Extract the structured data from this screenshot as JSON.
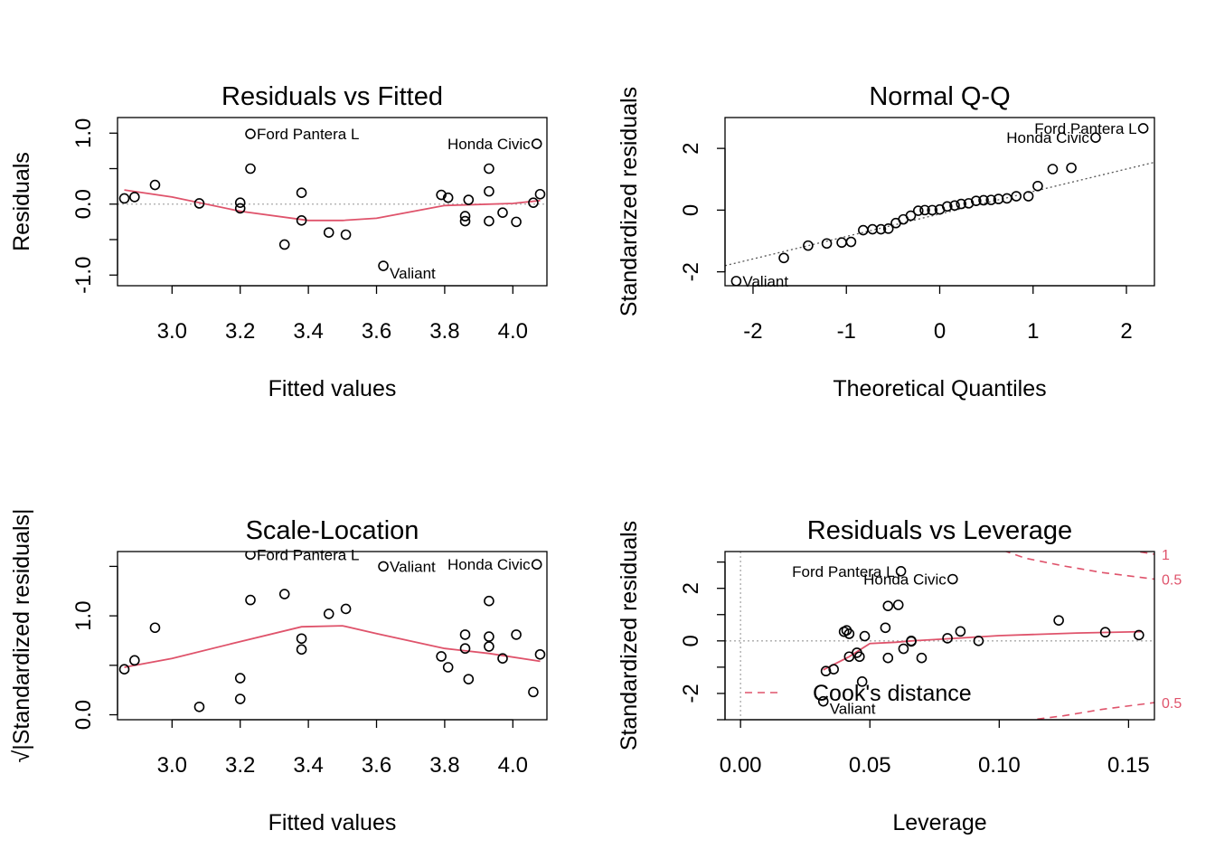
{
  "colors": {
    "smoother": "#DF536B",
    "cooks": "#DF536B",
    "refline": "#A9A9A9",
    "points": "#000000",
    "background": "#FFFFFF"
  },
  "chart_data": [
    {
      "type": "scatter",
      "title": "Residuals vs Fitted",
      "xlabel": "Fitted values",
      "ylabel": "Residuals",
      "xlim": [
        2.84,
        4.1
      ],
      "ylim": [
        -1.15,
        1.22
      ],
      "xticks": [
        3.0,
        3.2,
        3.4,
        3.6,
        3.8,
        4.0
      ],
      "xtick_labels": [
        "3.0",
        "3.2",
        "3.4",
        "3.6",
        "3.8",
        "4.0"
      ],
      "yticks": [
        -1.0,
        -0.5,
        0.0,
        0.5,
        1.0
      ],
      "ytick_labels": [
        "-1.0",
        "",
        "0.0",
        "",
        "1.0"
      ],
      "refline": {
        "kind": "h",
        "value": 0
      },
      "points": [
        [
          2.86,
          0.08
        ],
        [
          2.89,
          0.1
        ],
        [
          2.95,
          0.27
        ],
        [
          3.08,
          0.01
        ],
        [
          3.2,
          0.02
        ],
        [
          3.2,
          -0.06
        ],
        [
          3.23,
          0.99
        ],
        [
          3.23,
          0.5
        ],
        [
          3.33,
          -0.57
        ],
        [
          3.38,
          0.16
        ],
        [
          3.38,
          -0.23
        ],
        [
          3.46,
          -0.4
        ],
        [
          3.51,
          -0.43
        ],
        [
          3.62,
          -0.87
        ],
        [
          3.79,
          0.13
        ],
        [
          3.81,
          0.09
        ],
        [
          3.86,
          -0.17
        ],
        [
          3.86,
          -0.24
        ],
        [
          3.87,
          0.06
        ],
        [
          3.93,
          0.5
        ],
        [
          3.93,
          0.18
        ],
        [
          3.93,
          -0.24
        ],
        [
          3.97,
          -0.12
        ],
        [
          4.01,
          -0.25
        ],
        [
          4.06,
          0.02
        ],
        [
          4.07,
          0.85
        ],
        [
          4.08,
          0.14
        ]
      ],
      "smoother": [
        [
          2.86,
          0.2
        ],
        [
          3.0,
          0.1
        ],
        [
          3.2,
          -0.1
        ],
        [
          3.4,
          -0.23
        ],
        [
          3.5,
          -0.23
        ],
        [
          3.6,
          -0.2
        ],
        [
          3.8,
          -0.02
        ],
        [
          4.0,
          0.01
        ],
        [
          4.08,
          0.05
        ]
      ],
      "annotations": [
        {
          "text": "Ford Pantera L",
          "x": 3.23,
          "y": 0.99,
          "side": "right"
        },
        {
          "text": "Honda Civic",
          "x": 4.07,
          "y": 0.85,
          "side": "left"
        },
        {
          "text": "Valiant",
          "x": 3.62,
          "y": -0.87,
          "side": "right-below"
        }
      ]
    },
    {
      "type": "scatter",
      "title": "Normal Q-Q",
      "xlabel": "Theoretical Quantiles",
      "ylabel": "Standardized residuals",
      "xlim": [
        -2.3,
        2.3
      ],
      "ylim": [
        -2.45,
        3.0
      ],
      "xticks": [
        -2,
        -1,
        0,
        1,
        2
      ],
      "xtick_labels": [
        "-2",
        "-1",
        "0",
        "1",
        "2"
      ],
      "yticks": [
        -2,
        0,
        2
      ],
      "ytick_labels": [
        "-2",
        "0",
        "2"
      ],
      "refline": {
        "kind": "ab",
        "points": [
          [
            -2.3,
            -1.8
          ],
          [
            2.3,
            1.55
          ]
        ]
      },
      "points": [
        [
          -2.18,
          -2.3
        ],
        [
          -1.67,
          -1.55
        ],
        [
          -1.41,
          -1.15
        ],
        [
          -1.21,
          -1.08
        ],
        [
          -1.05,
          -1.05
        ],
        [
          -0.95,
          -1.03
        ],
        [
          -0.82,
          -0.65
        ],
        [
          -0.72,
          -0.62
        ],
        [
          -0.63,
          -0.62
        ],
        [
          -0.55,
          -0.6
        ],
        [
          -0.47,
          -0.42
        ],
        [
          -0.39,
          -0.3
        ],
        [
          -0.31,
          -0.18
        ],
        [
          -0.23,
          -0.02
        ],
        [
          -0.16,
          0.0
        ],
        [
          -0.08,
          0.0
        ],
        [
          0.0,
          0.02
        ],
        [
          0.08,
          0.12
        ],
        [
          0.16,
          0.15
        ],
        [
          0.23,
          0.2
        ],
        [
          0.31,
          0.22
        ],
        [
          0.39,
          0.3
        ],
        [
          0.47,
          0.32
        ],
        [
          0.55,
          0.33
        ],
        [
          0.63,
          0.36
        ],
        [
          0.72,
          0.38
        ],
        [
          0.82,
          0.45
        ],
        [
          0.95,
          0.45
        ],
        [
          1.05,
          0.78
        ],
        [
          1.21,
          1.33
        ],
        [
          1.41,
          1.37
        ],
        [
          1.67,
          2.35
        ],
        [
          2.18,
          2.65
        ]
      ],
      "annotations": [
        {
          "text": "Ford Pantera L",
          "x": 2.18,
          "y": 2.65,
          "side": "left"
        },
        {
          "text": "Honda Civic",
          "x": 1.67,
          "y": 2.35,
          "side": "left"
        },
        {
          "text": "Valiant",
          "x": -2.18,
          "y": -2.3,
          "side": "right"
        }
      ]
    },
    {
      "type": "scatter",
      "title": "Scale-Location",
      "xlabel": "Fitted values",
      "ylabel": "√|Standardized residuals|",
      "xlim": [
        2.84,
        4.1
      ],
      "ylim": [
        -0.05,
        1.65
      ],
      "xticks": [
        3.0,
        3.2,
        3.4,
        3.6,
        3.8,
        4.0
      ],
      "xtick_labels": [
        "3.0",
        "3.2",
        "3.4",
        "3.6",
        "3.8",
        "4.0"
      ],
      "yticks": [
        0.0,
        0.5,
        1.0,
        1.5
      ],
      "ytick_labels": [
        "0.0",
        "",
        "1.0",
        ""
      ],
      "points": [
        [
          2.86,
          0.46
        ],
        [
          2.89,
          0.55
        ],
        [
          2.95,
          0.88
        ],
        [
          3.08,
          0.08
        ],
        [
          3.2,
          0.37
        ],
        [
          3.2,
          0.16
        ],
        [
          3.23,
          1.62
        ],
        [
          3.23,
          1.16
        ],
        [
          3.33,
          1.22
        ],
        [
          3.38,
          0.77
        ],
        [
          3.38,
          0.66
        ],
        [
          3.46,
          1.02
        ],
        [
          3.51,
          1.07
        ],
        [
          3.62,
          1.5
        ],
        [
          3.79,
          0.59
        ],
        [
          3.81,
          0.48
        ],
        [
          3.86,
          0.81
        ],
        [
          3.86,
          0.67
        ],
        [
          3.87,
          0.36
        ],
        [
          3.93,
          1.15
        ],
        [
          3.93,
          0.79
        ],
        [
          3.93,
          0.69
        ],
        [
          3.97,
          0.57
        ],
        [
          4.01,
          0.81
        ],
        [
          4.06,
          0.23
        ],
        [
          4.07,
          1.52
        ],
        [
          4.08,
          0.61
        ]
      ],
      "smoother": [
        [
          2.86,
          0.48
        ],
        [
          3.0,
          0.57
        ],
        [
          3.2,
          0.74
        ],
        [
          3.38,
          0.89
        ],
        [
          3.5,
          0.9
        ],
        [
          3.6,
          0.82
        ],
        [
          3.8,
          0.67
        ],
        [
          3.93,
          0.62
        ],
        [
          4.08,
          0.54
        ]
      ],
      "annotations": [
        {
          "text": "Ford Pantera L",
          "x": 3.23,
          "y": 1.62,
          "side": "right"
        },
        {
          "text": "Valiant",
          "x": 3.62,
          "y": 1.5,
          "side": "right"
        },
        {
          "text": "Honda Civic",
          "x": 4.07,
          "y": 1.52,
          "side": "left"
        }
      ]
    },
    {
      "type": "scatter",
      "title": "Residuals vs Leverage",
      "xlabel": "Leverage",
      "ylabel": "Standardized residuals",
      "xlim": [
        -0.006,
        0.16
      ],
      "ylim": [
        -3.0,
        3.4
      ],
      "xticks": [
        0.0,
        0.05,
        0.1,
        0.15
      ],
      "xtick_labels": [
        "0.00",
        "0.05",
        "0.10",
        "0.15"
      ],
      "yticks": [
        -3,
        -2,
        -1,
        0,
        1,
        2,
        3
      ],
      "ytick_labels": [
        "",
        "-2",
        "",
        "0",
        "",
        "2",
        ""
      ],
      "refline": {
        "kind": "h",
        "value": 0
      },
      "vline": 0,
      "points": [
        [
          0.032,
          -2.3
        ],
        [
          0.033,
          -1.15
        ],
        [
          0.036,
          -1.08
        ],
        [
          0.04,
          0.35
        ],
        [
          0.041,
          0.4
        ],
        [
          0.042,
          -0.6
        ],
        [
          0.042,
          0.27
        ],
        [
          0.045,
          -0.45
        ],
        [
          0.046,
          -0.6
        ],
        [
          0.047,
          -1.55
        ],
        [
          0.048,
          0.18
        ],
        [
          0.056,
          0.5
        ],
        [
          0.057,
          -0.65
        ],
        [
          0.057,
          1.33
        ],
        [
          0.061,
          1.37
        ],
        [
          0.062,
          2.65
        ],
        [
          0.063,
          -0.3
        ],
        [
          0.066,
          -0.02
        ],
        [
          0.066,
          0.0
        ],
        [
          0.07,
          -0.65
        ],
        [
          0.08,
          0.1
        ],
        [
          0.082,
          2.35
        ],
        [
          0.085,
          0.36
        ],
        [
          0.092,
          0.0
        ],
        [
          0.123,
          0.78
        ],
        [
          0.141,
          0.33
        ],
        [
          0.154,
          0.22
        ]
      ],
      "smoother": [
        [
          0.032,
          -1.1
        ],
        [
          0.042,
          -0.6
        ],
        [
          0.05,
          -0.1
        ],
        [
          0.06,
          -0.05
        ],
        [
          0.066,
          0.0
        ],
        [
          0.08,
          0.08
        ],
        [
          0.1,
          0.2
        ],
        [
          0.13,
          0.3
        ],
        [
          0.155,
          0.35
        ]
      ],
      "cooks_distance": {
        "legend": "Cook's distance",
        "levels": [
          0.5,
          1
        ],
        "level_labels": [
          "0.5",
          "1"
        ],
        "upper_05": [
          [
            0.097,
            3.6
          ],
          [
            0.11,
            3.15
          ],
          [
            0.125,
            2.85
          ],
          [
            0.14,
            2.6
          ],
          [
            0.16,
            2.35
          ]
        ],
        "upper_1": [
          [
            0.14,
            3.6
          ],
          [
            0.15,
            3.45
          ],
          [
            0.16,
            3.3
          ]
        ],
        "lower_05": [
          [
            0.105,
            -3.1
          ],
          [
            0.125,
            -2.85
          ],
          [
            0.14,
            -2.6
          ],
          [
            0.16,
            -2.35
          ]
        ]
      },
      "annotations": [
        {
          "text": "Ford Pantera L",
          "x": 0.062,
          "y": 2.65,
          "side": "left"
        },
        {
          "text": "Honda Civic",
          "x": 0.082,
          "y": 2.35,
          "side": "left"
        },
        {
          "text": "Valiant",
          "x": 0.032,
          "y": -2.3,
          "side": "right-below"
        }
      ]
    }
  ]
}
